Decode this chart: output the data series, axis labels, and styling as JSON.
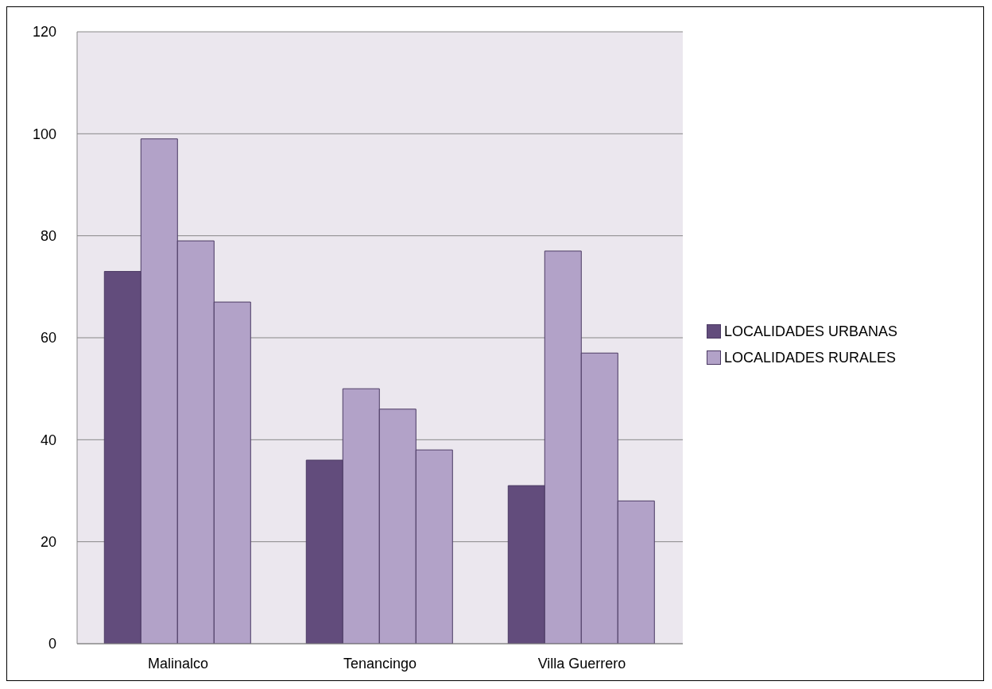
{
  "chart_data": {
    "type": "bar",
    "categories": [
      "Malinalco",
      "Tenancingo",
      "Villa Guerrero"
    ],
    "series": [
      {
        "name": "LOCALIDADES URBANAS",
        "color": "#624c7c",
        "values": [
          73,
          36,
          31
        ]
      },
      {
        "name": "LOCALIDADES RURALES",
        "color": "#b2a2c8",
        "values": [
          99,
          50,
          77
        ]
      },
      {
        "color": "#b2a2c8",
        "values": [
          79,
          46,
          57
        ]
      },
      {
        "color": "#b2a2c8",
        "values": [
          67,
          38,
          28
        ]
      }
    ],
    "ylim": [
      0,
      120
    ],
    "yticks": [
      0,
      20,
      40,
      60,
      80,
      100,
      120
    ],
    "grid": "y",
    "legend": "right"
  }
}
